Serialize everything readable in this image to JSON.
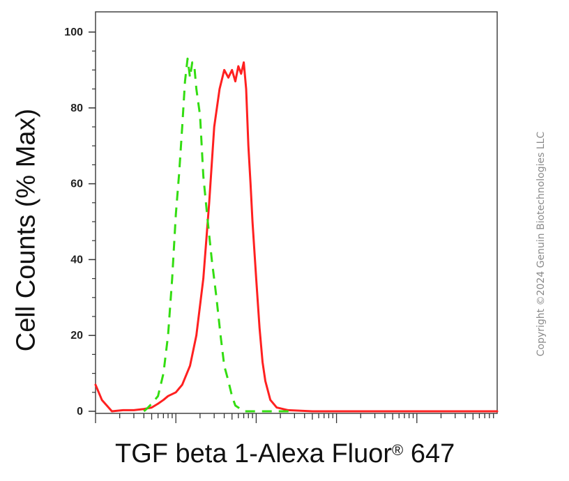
{
  "chart_data": {
    "type": "line",
    "ylabel": "Cell Counts (% Max)",
    "xlabel": "TGF beta 1-Alexa Fluor",
    "xlabel_mark": "®",
    "xlabel_tail": " 647",
    "x_scale": "log",
    "xlim": [
      1,
      100000
    ],
    "ylim": [
      0,
      100
    ],
    "y_ticks": [
      0,
      20,
      40,
      60,
      80,
      100
    ],
    "y_tick_labels": [
      "0",
      "20",
      "40",
      "60",
      "80",
      "100"
    ],
    "grid": false,
    "series": [
      {
        "color": "#ff2020",
        "style": "solid",
        "x": [
          1,
          1.2,
          1.6,
          2.2,
          3,
          4,
          5,
          6,
          7,
          8,
          10,
          12,
          15,
          18,
          22,
          26,
          30,
          35,
          40,
          45,
          50,
          55,
          60,
          65,
          70,
          75,
          80,
          85,
          90,
          100,
          110,
          120,
          130,
          150,
          180,
          250,
          500,
          1000,
          10000,
          100000
        ],
        "y": [
          7,
          3,
          0,
          0.3,
          0.3,
          0.6,
          1,
          2,
          3,
          4,
          5,
          7,
          12,
          20,
          35,
          55,
          75,
          85,
          90,
          88,
          90,
          87,
          91,
          89,
          92,
          85,
          70,
          60,
          50,
          35,
          22,
          13,
          8,
          3,
          1,
          0.3,
          0,
          0,
          0,
          0
        ]
      },
      {
        "color": "#33dd11",
        "style": "dashed",
        "x": [
          4,
          4.5,
          5,
          6,
          7,
          8,
          9,
          10,
          11,
          12,
          13,
          14,
          15,
          16,
          17,
          18,
          20,
          22,
          25,
          28,
          32,
          36,
          40,
          45,
          50,
          55,
          60,
          65,
          70,
          75,
          80,
          90,
          110,
          150,
          300
        ],
        "y": [
          0,
          1,
          2,
          4,
          10,
          20,
          35,
          52,
          63,
          75,
          87,
          93,
          88,
          92,
          91,
          85,
          78,
          62,
          50,
          40,
          30,
          20,
          12,
          8,
          4,
          1.5,
          1,
          0.5,
          0,
          0,
          0,
          0,
          0,
          0,
          0
        ]
      }
    ]
  },
  "watermark": "Copyright ©2024 Genuin Biotechnologies LLC"
}
